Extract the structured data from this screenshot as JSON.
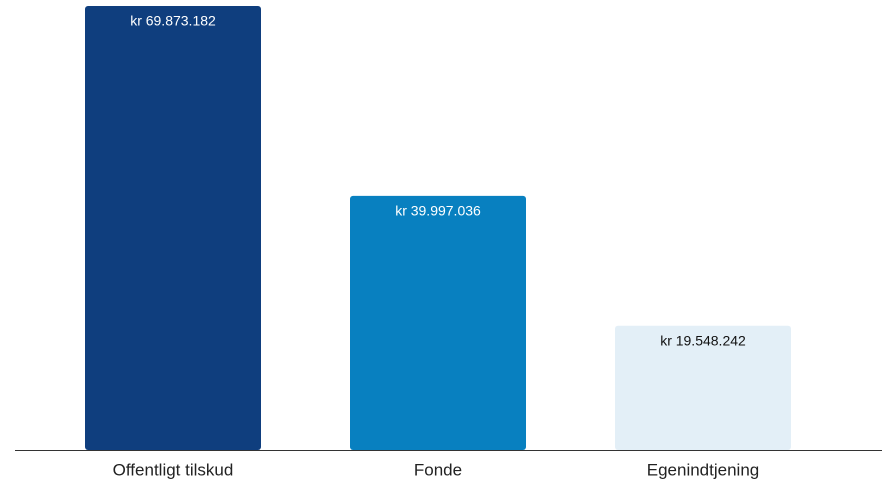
{
  "chart_data": {
    "type": "bar",
    "categories": [
      "Offentligt tilskud",
      "Fonde",
      "Egenindtjening"
    ],
    "values": [
      69873182,
      39997036,
      19548242
    ],
    "value_labels": [
      "kr 69.873.182",
      "kr 39.997.036",
      "kr 19.548.242"
    ],
    "colors": [
      "#0f3e7e",
      "#0880c0",
      "#e3eff7"
    ],
    "value_label_colors": [
      "#ffffff",
      "#ffffff",
      "#111111"
    ],
    "ylim": [
      0,
      70000000
    ]
  }
}
